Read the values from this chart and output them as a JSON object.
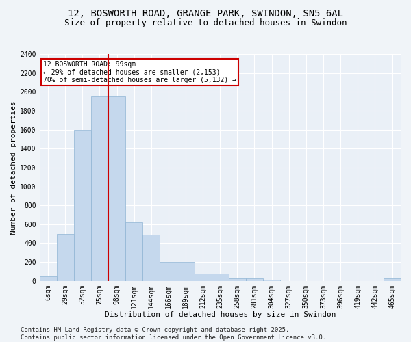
{
  "title1": "12, BOSWORTH ROAD, GRANGE PARK, SWINDON, SN5 6AL",
  "title2": "Size of property relative to detached houses in Swindon",
  "xlabel": "Distribution of detached houses by size in Swindon",
  "ylabel": "Number of detached properties",
  "categories": [
    "6sqm",
    "29sqm",
    "52sqm",
    "75sqm",
    "98sqm",
    "121sqm",
    "144sqm",
    "166sqm",
    "189sqm",
    "212sqm",
    "235sqm",
    "258sqm",
    "281sqm",
    "304sqm",
    "327sqm",
    "350sqm",
    "373sqm",
    "396sqm",
    "419sqm",
    "442sqm",
    "465sqm"
  ],
  "values": [
    50,
    500,
    1600,
    1950,
    1950,
    620,
    490,
    200,
    200,
    80,
    80,
    30,
    30,
    10,
    0,
    0,
    0,
    0,
    0,
    0,
    30
  ],
  "bar_color": "#c5d8ed",
  "bar_edge_color": "#8fb4d4",
  "vline_color": "#cc0000",
  "vline_index": 4.5,
  "annotation_title": "12 BOSWORTH ROAD: 99sqm",
  "annotation_line1": "← 29% of detached houses are smaller (2,153)",
  "annotation_line2": "70% of semi-detached houses are larger (5,132) →",
  "annotation_box_color": "#cc0000",
  "ylim": [
    0,
    2400
  ],
  "yticks": [
    0,
    200,
    400,
    600,
    800,
    1000,
    1200,
    1400,
    1600,
    1800,
    2000,
    2200,
    2400
  ],
  "footer1": "Contains HM Land Registry data © Crown copyright and database right 2025.",
  "footer2": "Contains public sector information licensed under the Open Government Licence v3.0.",
  "bg_color": "#eaf0f7",
  "grid_color": "#ffffff",
  "fig_bg_color": "#f0f4f8",
  "title_fontsize": 10,
  "subtitle_fontsize": 9,
  "axis_label_fontsize": 8,
  "tick_fontsize": 7,
  "footer_fontsize": 6.5
}
